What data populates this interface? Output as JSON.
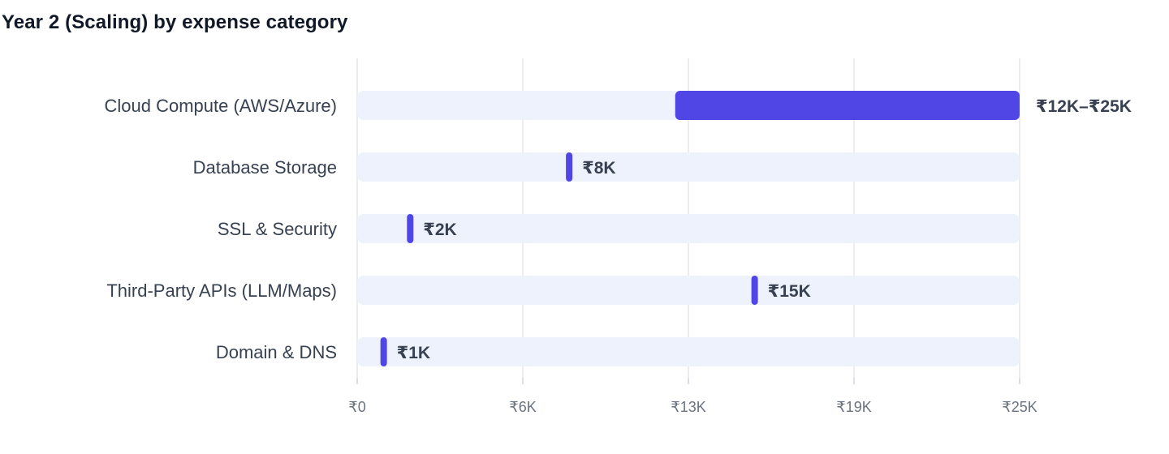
{
  "chart_data": {
    "type": "bar",
    "title": "Year 2 (Scaling) by expense category",
    "orientation": "horizontal",
    "xlabel": "",
    "ylabel": "",
    "xlim": [
      0,
      25000
    ],
    "x_ticks": [
      {
        "value": 0,
        "label": "₹0"
      },
      {
        "value": 6250,
        "label": "₹6K"
      },
      {
        "value": 12500,
        "label": "₹13K"
      },
      {
        "value": 18750,
        "label": "₹19K"
      },
      {
        "value": 25000,
        "label": "₹25K"
      }
    ],
    "grid": "vertical",
    "legend": "none",
    "colors": {
      "bar": "#4f46e5",
      "track": "#eef2fd",
      "grid": "#e5e7eb"
    },
    "categories": [
      "Cloud Compute (AWS/Azure)",
      "Database Storage",
      "SSL & Security",
      "Third-Party APIs (LLM/Maps)",
      "Domain & DNS"
    ],
    "ranges": [
      [
        12000,
        25000
      ],
      [
        8000,
        8000
      ],
      [
        2000,
        2000
      ],
      [
        15000,
        15000
      ],
      [
        1000,
        1000
      ]
    ],
    "value_labels": [
      "₹12K–₹25K",
      "₹8K",
      "₹2K",
      "₹15K",
      "₹1K"
    ]
  }
}
